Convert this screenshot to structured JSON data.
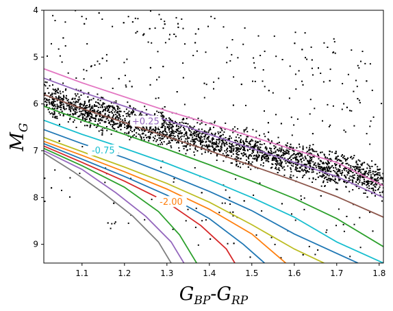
{
  "chart_data": {
    "type": "scatter",
    "title": "",
    "xlabel": {
      "main": "G",
      "sub1": "BP",
      "dash": "-",
      "main2": "G",
      "sub2": "RP"
    },
    "ylabel": {
      "main": "M",
      "sub": "G"
    },
    "xlim": [
      1.01,
      1.81
    ],
    "ylim": [
      9.4,
      4.0
    ],
    "y_inverted": true,
    "grid": false,
    "legend": "none",
    "xticks": [
      "1.1",
      "1.2",
      "1.3",
      "1.4",
      "1.5",
      "1.6",
      "1.7",
      "1.8"
    ],
    "yticks": [
      "4",
      "5",
      "6",
      "7",
      "8",
      "9"
    ],
    "scatter": {
      "color": "#000000",
      "ridge": [
        [
          1.01,
          5.9
        ],
        [
          1.1,
          6.12
        ],
        [
          1.2,
          6.35
        ],
        [
          1.3,
          6.58
        ],
        [
          1.4,
          6.8
        ],
        [
          1.5,
          7.0
        ],
        [
          1.6,
          7.2
        ],
        [
          1.7,
          7.42
        ],
        [
          1.81,
          7.68
        ]
      ],
      "scatter_up": 0.55,
      "scatter_down": 0.5,
      "sparse_top": true
    },
    "series": [
      {
        "color": "#e377c2",
        "points": [
          [
            1.01,
            5.25
          ],
          [
            1.1,
            5.55
          ],
          [
            1.2,
            5.85
          ],
          [
            1.3,
            6.15
          ],
          [
            1.4,
            6.42
          ],
          [
            1.5,
            6.7
          ],
          [
            1.6,
            6.98
          ],
          [
            1.7,
            7.25
          ],
          [
            1.81,
            7.75
          ]
        ]
      },
      {
        "color": "#9467bd",
        "points": [
          [
            1.01,
            5.45
          ],
          [
            1.1,
            5.75
          ],
          [
            1.2,
            6.05
          ],
          [
            1.3,
            6.35
          ],
          [
            1.4,
            6.65
          ],
          [
            1.5,
            6.95
          ],
          [
            1.6,
            7.25
          ],
          [
            1.7,
            7.55
          ],
          [
            1.81,
            8.0
          ]
        ]
      },
      {
        "color": "#8c564b",
        "points": [
          [
            1.01,
            5.8
          ],
          [
            1.1,
            6.1
          ],
          [
            1.2,
            6.4
          ],
          [
            1.3,
            6.7
          ],
          [
            1.4,
            7.0
          ],
          [
            1.5,
            7.32
          ],
          [
            1.6,
            7.64
          ],
          [
            1.7,
            7.98
          ],
          [
            1.81,
            8.42
          ]
        ]
      },
      {
        "color": "#2ca02c",
        "points": [
          [
            1.01,
            6.05
          ],
          [
            1.1,
            6.35
          ],
          [
            1.2,
            6.65
          ],
          [
            1.3,
            6.97
          ],
          [
            1.4,
            7.3
          ],
          [
            1.5,
            7.65
          ],
          [
            1.6,
            8.02
          ],
          [
            1.7,
            8.45
          ],
          [
            1.81,
            9.05
          ]
        ]
      },
      {
        "color": "#17becf",
        "points": [
          [
            1.01,
            6.35
          ],
          [
            1.1,
            6.65
          ],
          [
            1.2,
            6.95
          ],
          [
            1.3,
            7.27
          ],
          [
            1.4,
            7.62
          ],
          [
            1.5,
            8.0
          ],
          [
            1.6,
            8.42
          ],
          [
            1.7,
            8.95
          ],
          [
            1.81,
            9.4
          ]
        ]
      },
      {
        "color": "#1f77b4",
        "points": [
          [
            1.01,
            6.55
          ],
          [
            1.1,
            6.85
          ],
          [
            1.2,
            7.15
          ],
          [
            1.3,
            7.5
          ],
          [
            1.4,
            7.87
          ],
          [
            1.5,
            8.28
          ],
          [
            1.6,
            8.78
          ],
          [
            1.75,
            9.4
          ]
        ]
      },
      {
        "color": "#bcbd22",
        "points": [
          [
            1.01,
            6.72
          ],
          [
            1.1,
            7.02
          ],
          [
            1.2,
            7.35
          ],
          [
            1.3,
            7.7
          ],
          [
            1.4,
            8.1
          ],
          [
            1.5,
            8.58
          ],
          [
            1.6,
            9.1
          ],
          [
            1.67,
            9.4
          ]
        ]
      },
      {
        "color": "#ff7f0e",
        "points": [
          [
            1.01,
            6.8
          ],
          [
            1.1,
            7.1
          ],
          [
            1.2,
            7.45
          ],
          [
            1.3,
            7.82
          ],
          [
            1.4,
            8.25
          ],
          [
            1.5,
            8.78
          ],
          [
            1.58,
            9.4
          ]
        ]
      },
      {
        "color": "#1f77b4",
        "points": [
          [
            1.01,
            6.85
          ],
          [
            1.1,
            7.18
          ],
          [
            1.2,
            7.55
          ],
          [
            1.3,
            7.95
          ],
          [
            1.4,
            8.45
          ],
          [
            1.48,
            9.0
          ],
          [
            1.53,
            9.4
          ]
        ]
      },
      {
        "color": "#d62728",
        "points": [
          [
            1.01,
            6.9
          ],
          [
            1.1,
            7.25
          ],
          [
            1.2,
            7.65
          ],
          [
            1.3,
            8.1
          ],
          [
            1.38,
            8.6
          ],
          [
            1.44,
            9.1
          ],
          [
            1.46,
            9.4
          ]
        ]
      },
      {
        "color": "#2ca02c",
        "points": [
          [
            1.01,
            6.95
          ],
          [
            1.1,
            7.32
          ],
          [
            1.2,
            7.78
          ],
          [
            1.28,
            8.3
          ],
          [
            1.33,
            8.8
          ],
          [
            1.37,
            9.4
          ]
        ]
      },
      {
        "color": "#9467bd",
        "points": [
          [
            1.01,
            7.0
          ],
          [
            1.1,
            7.4
          ],
          [
            1.18,
            7.9
          ],
          [
            1.25,
            8.4
          ],
          [
            1.31,
            8.95
          ],
          [
            1.34,
            9.4
          ]
        ]
      },
      {
        "color": "#7f7f7f",
        "points": [
          [
            1.01,
            7.05
          ],
          [
            1.08,
            7.45
          ],
          [
            1.15,
            7.9
          ],
          [
            1.22,
            8.4
          ],
          [
            1.28,
            8.95
          ],
          [
            1.31,
            9.4
          ]
        ]
      }
    ],
    "contour_labels": [
      {
        "text": "+0.25",
        "x": 1.25,
        "y": 6.38,
        "color": "#9467bd",
        "background": "#ffffff"
      },
      {
        "text": "-0.75",
        "x": 1.15,
        "y": 7.0,
        "color": "#17becf",
        "background": "#ffffff"
      },
      {
        "text": "-2.00",
        "x": 1.31,
        "y": 8.1,
        "color": "#ff7f0e",
        "background": "#ffffff"
      }
    ]
  }
}
